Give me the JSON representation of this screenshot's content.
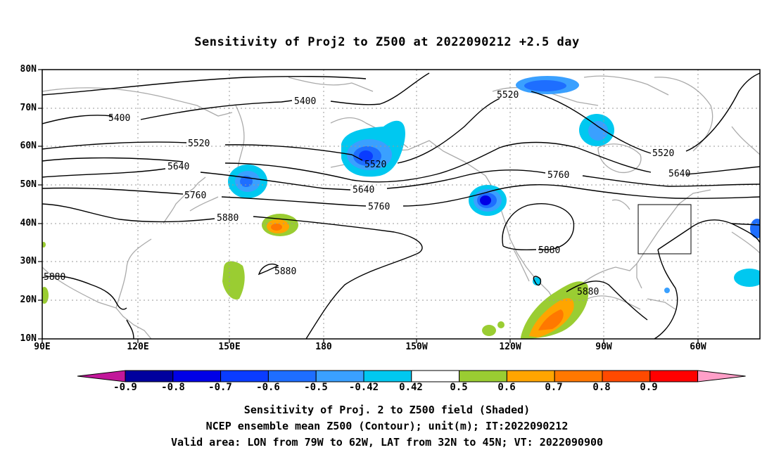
{
  "title": "Sensitivity of Proj2 to Z500 at 2022090212 +2.5 day",
  "lat_labels": [
    "80N",
    "70N",
    "60N",
    "50N",
    "40N",
    "30N",
    "20N",
    "10N"
  ],
  "lon_labels": [
    "90E",
    "120E",
    "150E",
    "180",
    "150W",
    "120W",
    "90W",
    "60W"
  ],
  "contour_labels": {
    "l5400a": "5400",
    "l5400b": "5400",
    "l5520a": "5520",
    "l5520b": "5520",
    "l5520c": "5520",
    "l5520d": "5520",
    "l5640a": "5640",
    "l5640b": "5640",
    "l5640c": "5640",
    "l5760a": "5760",
    "l5760b": "5760",
    "l5760c": "5760",
    "l5880a": "5880",
    "l5880b": "5880",
    "l5880c": "5880",
    "l5880d": "5880",
    "l5880e": "5880"
  },
  "colorbar": {
    "labels": [
      "-0.9",
      "-0.8",
      "-0.7",
      "-0.6",
      "-0.5",
      "-0.42",
      "0.42",
      "0.5",
      "0.6",
      "0.7",
      "0.8",
      "0.9"
    ],
    "colors": {
      "low_arrow": "#c2179a",
      "bins": [
        "#00009e",
        "#0000e6",
        "#0a3cff",
        "#1e6eff",
        "#3aa0ff",
        "#00c8f0",
        "#ffffff",
        "#9acd32",
        "#ffa500",
        "#ff7800",
        "#ff4a00",
        "#ff0000"
      ],
      "high_arrow": "#ff9fc8"
    }
  },
  "footer": [
    "Sensitivity of Proj. 2 to Z500 field (Shaded)",
    "NCEP ensemble mean Z500 (Contour); unit(m); IT:2022090212",
    "Valid area: LON from 79W to 62W, LAT from 32N to 45N; VT: 2022090900"
  ]
}
